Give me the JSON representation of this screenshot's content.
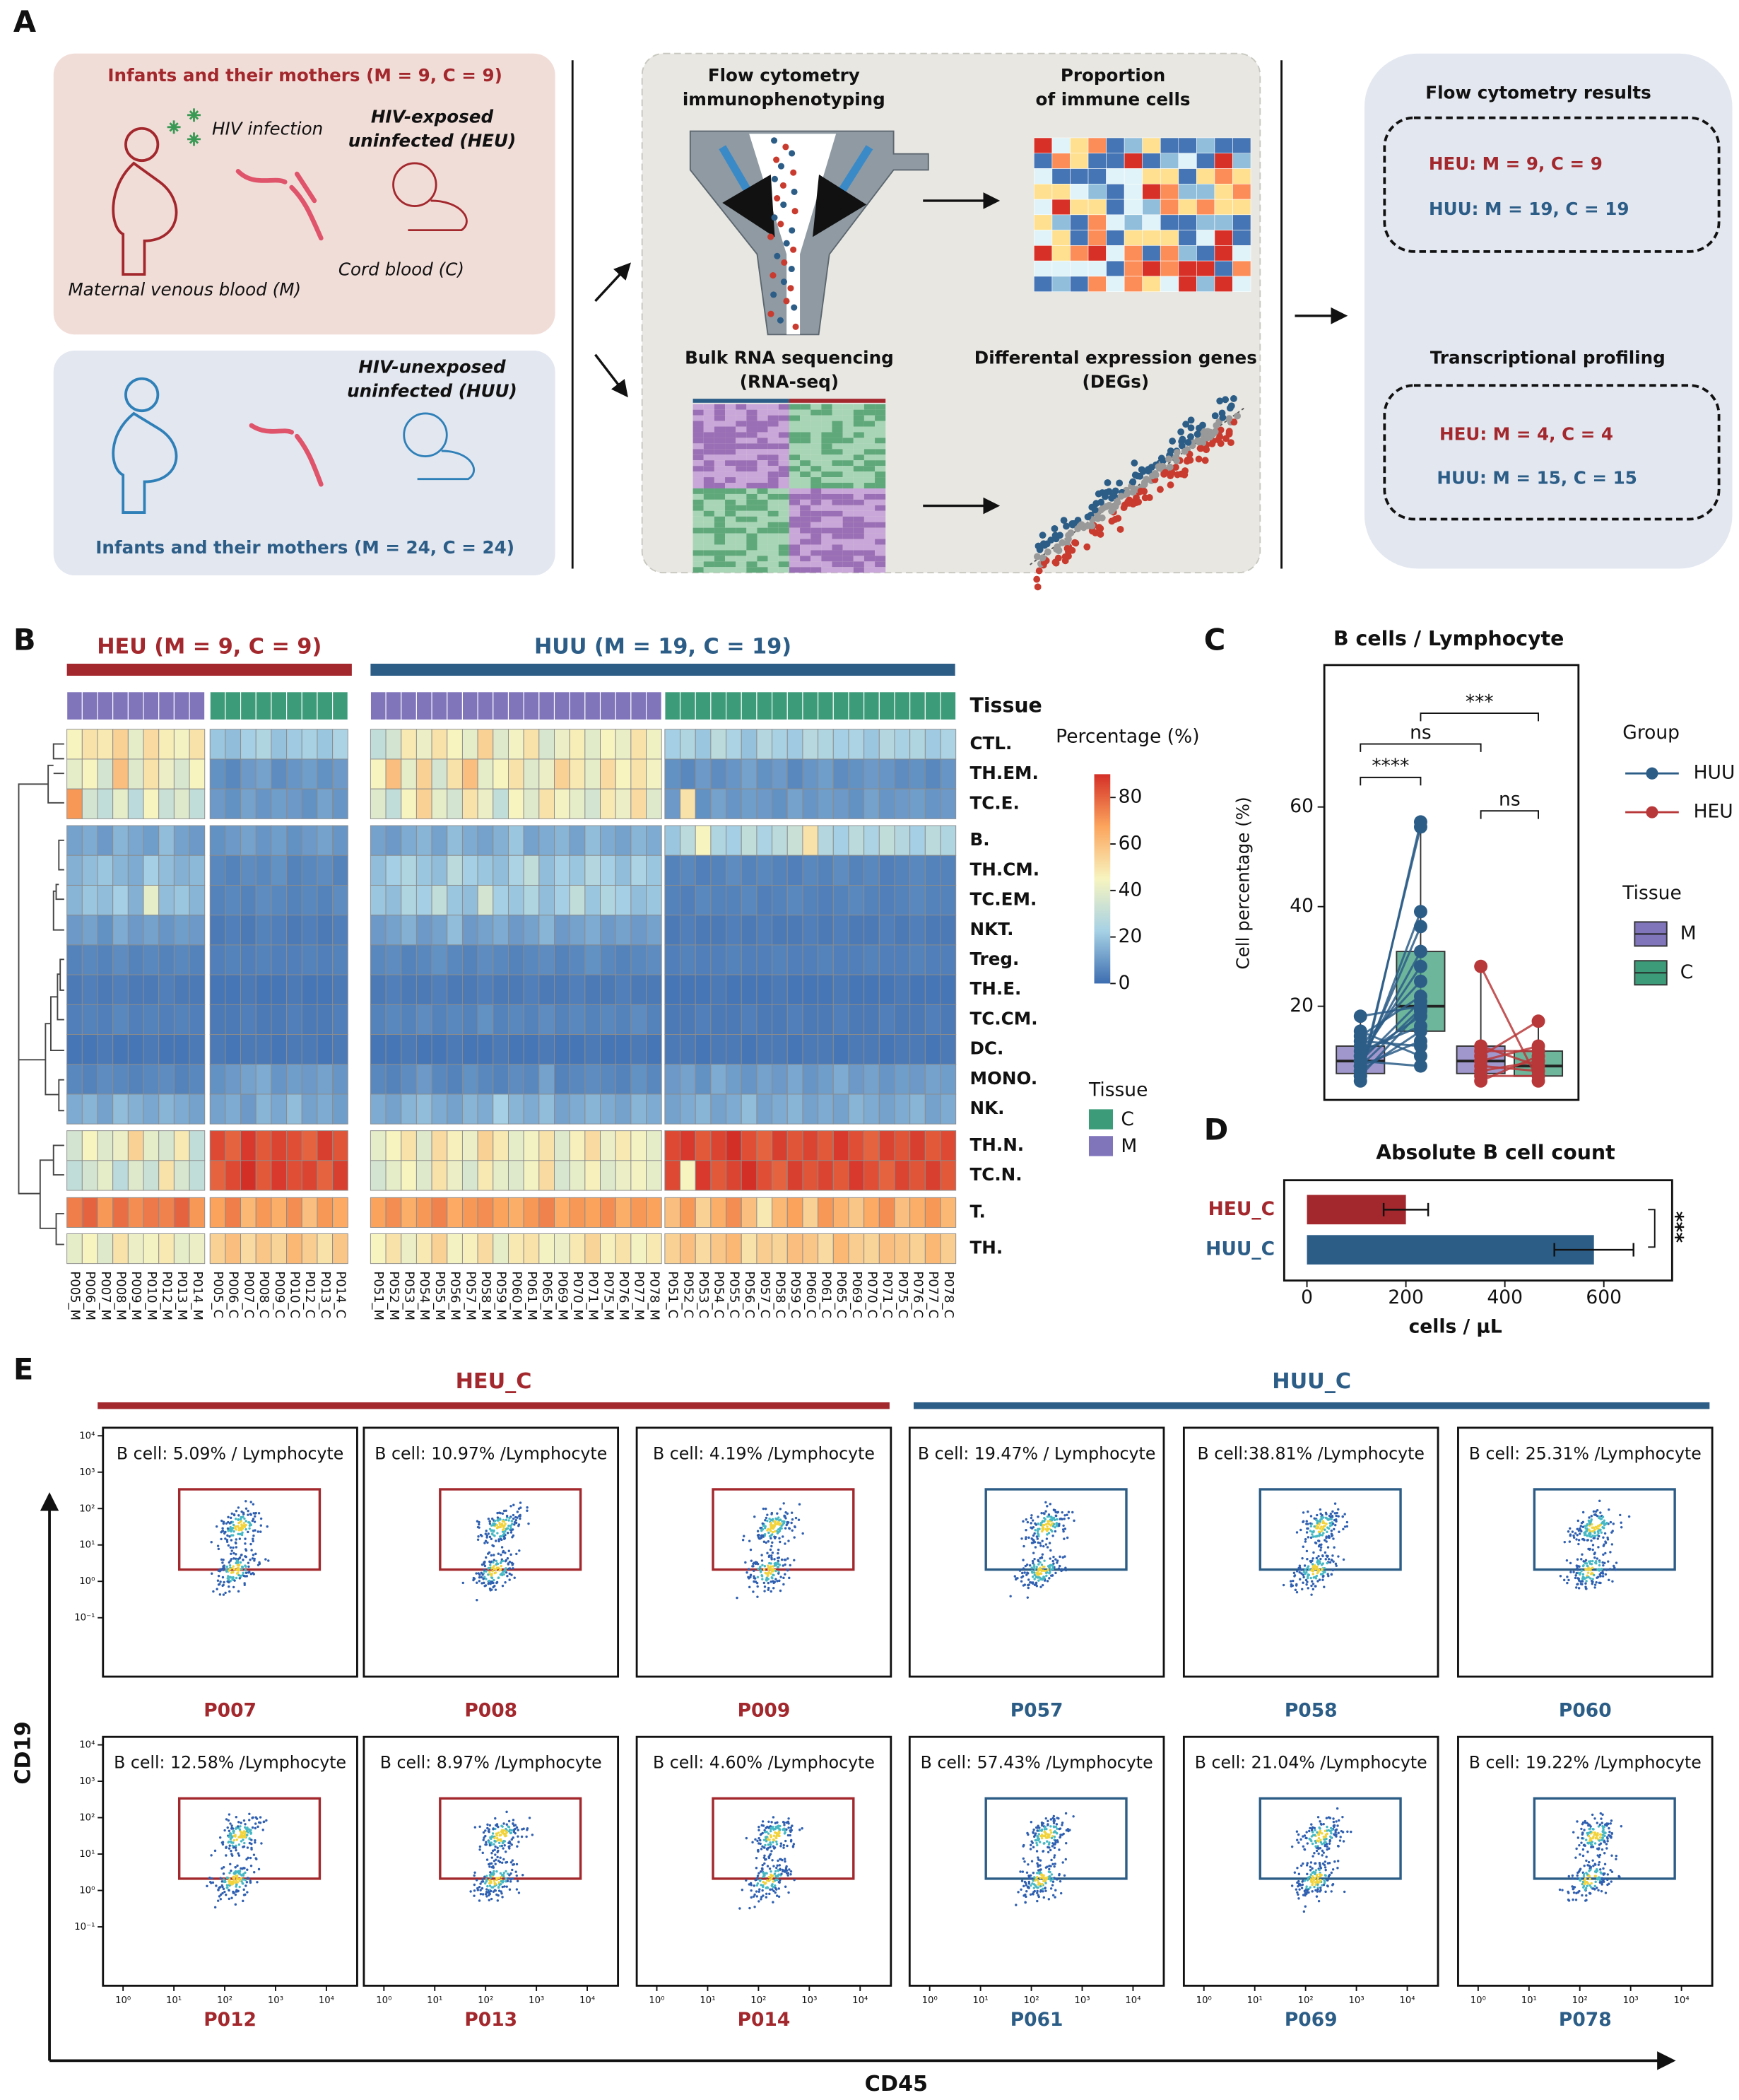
{
  "panel_a": {
    "label": "A",
    "heu_box": {
      "title": "Infants and their mothers (M = 9, C = 9)",
      "infection": "HIV infection",
      "group": [
        "HIV-exposed",
        "uninfected (HEU)"
      ],
      "cord": "Cord blood (C)",
      "maternal": "Maternal venous blood (M)"
    },
    "huu_box": {
      "group": [
        "HIV-unexposed",
        "uninfected (HUU)"
      ],
      "title": "Infants and their mothers (M = 24, C = 24)"
    },
    "methods": {
      "flow": [
        "Flow cytometry",
        "immunophenotyping"
      ],
      "proportion": [
        "Proportion",
        "of immune cells"
      ],
      "rnaseq": [
        "Bulk RNA sequencing",
        "(RNA-seq)"
      ],
      "degs": [
        "Differental expression genes",
        "(DEGs)"
      ]
    },
    "results": {
      "flow_title": "Flow cytometry results",
      "flow_heu": "HEU: M = 9, C = 9",
      "flow_huu": "HUU: M = 19, C = 19",
      "tx_title": "Transcriptional profiling",
      "tx_heu": "HEU: M = 4, C = 4",
      "tx_huu": "HUU: M = 15, C = 15"
    }
  },
  "panel_b": {
    "label": "B",
    "type": "heatmap",
    "groups": [
      {
        "label": "HEU (M = 9, C = 9)",
        "color": "#a3282d"
      },
      {
        "label": "HUU (M = 19, C = 19)",
        "color": "#2c5d87"
      }
    ],
    "tissue_title": "Tissue",
    "tissue_legend": [
      {
        "name": "C",
        "color": "#3c9c7a"
      },
      {
        "name": "M",
        "color": "#8074bb"
      }
    ],
    "colorbar": {
      "title": "Percentage (%)",
      "range": [
        0,
        90
      ],
      "ticks": [
        0,
        20,
        40,
        60,
        80
      ],
      "colors": [
        "#3d6db0",
        "#a6d1e5",
        "#f7f4c0",
        "#fca55d",
        "#d42f27"
      ]
    },
    "rows": [
      "CTL.",
      "TH.EM.",
      "TC.E.",
      "B.",
      "TH.CM.",
      "TC.EM.",
      "NKT.",
      "Treg.",
      "TH.E.",
      "TC.CM.",
      "DC.",
      "MONO.",
      "NK.",
      "TH.N.",
      "TC.N.",
      "T.",
      "TH."
    ],
    "columns": [
      "P005_M",
      "P006_M",
      "P007_M",
      "P008_M",
      "P009_M",
      "P010_M",
      "P012_M",
      "P013_M",
      "P014_M",
      "P005_C",
      "P006_C",
      "P007_C",
      "P008_C",
      "P009_C",
      "P010_C",
      "P012_C",
      "P013_C",
      "P014_C",
      "P051_M",
      "P052_M",
      "P053_M",
      "P054_M",
      "P055_M",
      "P056_M",
      "P057_M",
      "P058_M",
      "P059_M",
      "P060_M",
      "P061_M",
      "P065_M",
      "P069_M",
      "P070_M",
      "P071_M",
      "P075_M",
      "P076_M",
      "P077_M",
      "P078_M",
      "P051_C",
      "P052_C",
      "P053_C",
      "P054_C",
      "P055_C",
      "P056_C",
      "P057_C",
      "P058_C",
      "P059_C",
      "P060_C",
      "P061_C",
      "P065_C",
      "P069_C",
      "P070_C",
      "P071_C",
      "P075_C",
      "P076_C",
      "P077_C",
      "P078_C"
    ],
    "values": [
      [
        45,
        50,
        48,
        55,
        40,
        52,
        47,
        44,
        50,
        20,
        18,
        22,
        25,
        19,
        21,
        23,
        20,
        24,
        30,
        35,
        48,
        42,
        50,
        45,
        40,
        55,
        38,
        44,
        50,
        36,
        42,
        47,
        39,
        45,
        41,
        50,
        43,
        22,
        25,
        20,
        28,
        24,
        19,
        26,
        23,
        21,
        27,
        25,
        22,
        24,
        20,
        26,
        23,
        25,
        21,
        24
      ],
      [
        40,
        45,
        35,
        60,
        38,
        50,
        42,
        36,
        45,
        8,
        6,
        10,
        12,
        7,
        9,
        11,
        8,
        10,
        45,
        60,
        40,
        55,
        35,
        50,
        60,
        40,
        45,
        50,
        38,
        42,
        55,
        48,
        40,
        52,
        45,
        50,
        44,
        8,
        6,
        10,
        7,
        9,
        12,
        8,
        10,
        6,
        9,
        11,
        7,
        8,
        10,
        9,
        7,
        8,
        6,
        9
      ],
      [
        70,
        35,
        30,
        40,
        28,
        45,
        32,
        38,
        30,
        10,
        8,
        12,
        9,
        11,
        10,
        8,
        12,
        9,
        38,
        30,
        45,
        55,
        40,
        35,
        50,
        42,
        30,
        45,
        38,
        50,
        44,
        40,
        35,
        48,
        42,
        52,
        38,
        10,
        50,
        8,
        12,
        9,
        11,
        10,
        8,
        12,
        9,
        11,
        10,
        8,
        12,
        9,
        10,
        11,
        9,
        10
      ],
      [
        12,
        14,
        10,
        16,
        13,
        11,
        18,
        12,
        10,
        8,
        10,
        12,
        9,
        11,
        8,
        10,
        12,
        9,
        12,
        10,
        14,
        16,
        12,
        18,
        14,
        12,
        15,
        20,
        12,
        14,
        16,
        12,
        18,
        14,
        12,
        16,
        14,
        20,
        28,
        45,
        25,
        22,
        30,
        24,
        28,
        32,
        50,
        26,
        22,
        28,
        24,
        30,
        26,
        22,
        28,
        25
      ],
      [
        15,
        18,
        20,
        16,
        14,
        22,
        18,
        15,
        17,
        6,
        5,
        7,
        6,
        8,
        5,
        6,
        7,
        5,
        18,
        22,
        25,
        20,
        18,
        28,
        22,
        20,
        18,
        24,
        30,
        18,
        22,
        20,
        26,
        22,
        18,
        24,
        20,
        5,
        6,
        4,
        5,
        7,
        5,
        6,
        5,
        4,
        6,
        5,
        7,
        5,
        6,
        4,
        5,
        6,
        5,
        5
      ],
      [
        16,
        20,
        18,
        22,
        15,
        40,
        18,
        20,
        16,
        5,
        6,
        5,
        7,
        6,
        5,
        6,
        5,
        7,
        20,
        18,
        25,
        22,
        30,
        20,
        18,
        35,
        22,
        20,
        25,
        18,
        22,
        30,
        20,
        25,
        22,
        18,
        20,
        5,
        4,
        6,
        5,
        5,
        6,
        4,
        5,
        6,
        5,
        4,
        5,
        6,
        5,
        4,
        5,
        6,
        5,
        5
      ],
      [
        10,
        12,
        8,
        14,
        10,
        12,
        9,
        11,
        10,
        3,
        4,
        3,
        5,
        4,
        3,
        4,
        3,
        4,
        10,
        12,
        15,
        10,
        12,
        18,
        10,
        12,
        14,
        10,
        12,
        16,
        10,
        12,
        14,
        10,
        12,
        10,
        12,
        3,
        4,
        3,
        3,
        4,
        3,
        4,
        3,
        3,
        4,
        3,
        4,
        3,
        3,
        4,
        3,
        4,
        3,
        3
      ],
      [
        5,
        6,
        5,
        7,
        5,
        6,
        5,
        6,
        5,
        4,
        5,
        4,
        5,
        4,
        4,
        5,
        4,
        5,
        6,
        7,
        5,
        6,
        8,
        6,
        5,
        7,
        6,
        5,
        6,
        7,
        5,
        6,
        8,
        6,
        5,
        6,
        7,
        4,
        5,
        4,
        4,
        5,
        4,
        4,
        5,
        4,
        4,
        5,
        4,
        4,
        5,
        4,
        4,
        5,
        4,
        4
      ],
      [
        3,
        4,
        3,
        4,
        3,
        3,
        4,
        3,
        3,
        2,
        2,
        3,
        2,
        2,
        3,
        2,
        2,
        3,
        3,
        4,
        3,
        3,
        4,
        3,
        3,
        4,
        3,
        3,
        4,
        3,
        3,
        4,
        3,
        3,
        4,
        3,
        3,
        2,
        2,
        2,
        3,
        2,
        2,
        2,
        3,
        2,
        2,
        2,
        3,
        2,
        2,
        2,
        3,
        2,
        2,
        2
      ],
      [
        4,
        5,
        4,
        6,
        4,
        5,
        4,
        5,
        4,
        3,
        3,
        4,
        3,
        3,
        4,
        3,
        3,
        4,
        5,
        6,
        5,
        7,
        5,
        6,
        5,
        8,
        5,
        6,
        5,
        7,
        5,
        6,
        5,
        6,
        5,
        7,
        5,
        3,
        3,
        4,
        3,
        3,
        4,
        3,
        3,
        4,
        3,
        3,
        4,
        3,
        3,
        4,
        3,
        3,
        4,
        3
      ],
      [
        2,
        2,
        3,
        2,
        2,
        3,
        2,
        2,
        3,
        3,
        2,
        3,
        3,
        2,
        3,
        3,
        2,
        3,
        2,
        2,
        3,
        2,
        2,
        3,
        2,
        2,
        3,
        2,
        2,
        3,
        2,
        2,
        3,
        2,
        2,
        3,
        2,
        3,
        3,
        2,
        3,
        3,
        2,
        3,
        3,
        2,
        3,
        3,
        2,
        3,
        3,
        2,
        3,
        3,
        2,
        3
      ],
      [
        6,
        5,
        7,
        6,
        5,
        6,
        7,
        5,
        6,
        8,
        10,
        12,
        14,
        9,
        11,
        10,
        12,
        9,
        6,
        5,
        7,
        10,
        6,
        5,
        8,
        6,
        5,
        7,
        6,
        12,
        5,
        6,
        7,
        6,
        5,
        8,
        6,
        10,
        12,
        8,
        14,
        11,
        9,
        12,
        10,
        13,
        9,
        11,
        14,
        10,
        12,
        9,
        11,
        10,
        12,
        11
      ],
      [
        14,
        16,
        12,
        18,
        15,
        13,
        16,
        14,
        12,
        12,
        14,
        10,
        16,
        13,
        18,
        12,
        14,
        11,
        14,
        12,
        16,
        18,
        14,
        12,
        16,
        14,
        22,
        16,
        14,
        18,
        12,
        14,
        16,
        14,
        12,
        16,
        14,
        12,
        14,
        16,
        12,
        14,
        18,
        12,
        14,
        16,
        12,
        14,
        12,
        16,
        14,
        12,
        14,
        16,
        12,
        14
      ],
      [
        35,
        45,
        38,
        42,
        55,
        40,
        36,
        48,
        30,
        85,
        80,
        88,
        82,
        86,
        84,
        80,
        87,
        83,
        40,
        45,
        50,
        38,
        52,
        46,
        42,
        55,
        48,
        40,
        44,
        50,
        38,
        46,
        52,
        42,
        48,
        44,
        40,
        85,
        88,
        82,
        86,
        90,
        84,
        80,
        87,
        83,
        86,
        82,
        88,
        84,
        80,
        86,
        83,
        87,
        82,
        85
      ],
      [
        30,
        35,
        40,
        28,
        38,
        32,
        50,
        36,
        30,
        80,
        85,
        90,
        82,
        88,
        84,
        86,
        80,
        87,
        35,
        40,
        45,
        38,
        50,
        42,
        36,
        48,
        40,
        38,
        44,
        52,
        36,
        40,
        46,
        38,
        42,
        44,
        40,
        85,
        45,
        88,
        82,
        86,
        90,
        84,
        80,
        87,
        83,
        86,
        82,
        88,
        84,
        80,
        86,
        83,
        87,
        82
      ],
      [
        75,
        80,
        70,
        78,
        72,
        76,
        74,
        80,
        70,
        68,
        75,
        62,
        70,
        65,
        72,
        60,
        70,
        66,
        68,
        72,
        65,
        70,
        74,
        66,
        70,
        72,
        68,
        65,
        70,
        74,
        66,
        70,
        68,
        72,
        65,
        70,
        68,
        60,
        70,
        55,
        65,
        72,
        60,
        48,
        62,
        68,
        55,
        70,
        64,
        58,
        66,
        72,
        60,
        65,
        70,
        62
      ],
      [
        40,
        45,
        38,
        50,
        42,
        44,
        48,
        40,
        42,
        55,
        60,
        52,
        58,
        54,
        62,
        56,
        50,
        58,
        45,
        50,
        42,
        48,
        55,
        44,
        46,
        52,
        40,
        48,
        50,
        44,
        42,
        48,
        54,
        46,
        50,
        44,
        48,
        55,
        60,
        52,
        58,
        62,
        50,
        56,
        54,
        60,
        58,
        52,
        62,
        56,
        54,
        60,
        58,
        55,
        62,
        56
      ]
    ]
  },
  "panel_c": {
    "label": "C",
    "type": "box",
    "title": "B cells / Lymphocyte",
    "ylabel": "Cell percentage (%)",
    "ylim": [
      1.2,
      88.5
    ],
    "yticks": [
      20,
      40,
      60
    ],
    "group_title": "Group",
    "tissue_title": "Tissue",
    "tissues": [
      {
        "name": "M",
        "color": "#8074bb"
      },
      {
        "name": "C",
        "color": "#3c9c7a"
      }
    ],
    "groups": [
      {
        "name": "HUU",
        "color": "#2c5d87",
        "boxes": [
          {
            "min": 4,
            "q1": 6.5,
            "median": 9,
            "q3": 12,
            "max": 18
          },
          {
            "min": 8,
            "q1": 15,
            "median": 20,
            "q3": 31,
            "max": 57
          }
        ],
        "M": [
          5,
          6,
          7,
          8,
          9,
          10,
          12,
          14,
          18,
          6,
          8,
          9,
          10,
          11,
          7,
          8,
          13,
          15,
          9
        ],
        "C": [
          57,
          56,
          39,
          36,
          31,
          28,
          25,
          22,
          20,
          19,
          19.5,
          21,
          18,
          16,
          15,
          13,
          12,
          10,
          8
        ]
      },
      {
        "name": "HEU",
        "color": "#b8383a",
        "boxes": [
          {
            "min": 5,
            "q1": 6.5,
            "median": 9,
            "q3": 12,
            "max": 28
          },
          {
            "min": 5,
            "q1": 6,
            "median": 8,
            "q3": 11,
            "max": 17
          }
        ],
        "M": [
          28,
          12,
          10,
          9,
          8,
          7,
          6,
          5,
          11
        ],
        "C": [
          5,
          8,
          17,
          12,
          7,
          9,
          6,
          10,
          11
        ]
      }
    ],
    "comparisons": [
      "****",
      "ns",
      "***",
      "ns"
    ]
  },
  "panel_d": {
    "label": "D",
    "type": "bar",
    "title": "Absolute B cell count",
    "xlabel": "cells / μL",
    "categories": [
      "HEU_C",
      "HUU_C"
    ],
    "values": [
      200,
      580
    ],
    "errors": [
      45,
      80
    ],
    "colors": [
      "#a3282d",
      "#2c5d87"
    ],
    "xlim": [
      -46,
      738
    ],
    "xticks": [
      0,
      200,
      400,
      600
    ],
    "annotation": "***"
  },
  "panel_e": {
    "label": "E",
    "xlabel": "CD45",
    "ylabel": "CD19",
    "log_ticks": [
      {
        "value": -1,
        "label": "10⁻¹"
      },
      {
        "value": 0,
        "label": "10⁰"
      },
      {
        "value": 1,
        "label": "10¹"
      },
      {
        "value": 2,
        "label": "10²"
      },
      {
        "value": 3,
        "label": "10³"
      },
      {
        "value": 4,
        "label": "10⁴"
      }
    ],
    "groups": [
      {
        "label": "HEU_C",
        "color": "#a3282d",
        "plots": [
          {
            "sample": "P007",
            "text": "B cell: 5.09% / Lymphocyte"
          },
          {
            "sample": "P008",
            "text": "B cell: 10.97% /Lymphocyte"
          },
          {
            "sample": "P009",
            "text": "B cell: 4.19% /Lymphocyte"
          },
          {
            "sample": "P012",
            "text": "B cell: 12.58% /Lymphocyte"
          },
          {
            "sample": "P013",
            "text": "B cell: 8.97% /Lymphocyte"
          },
          {
            "sample": "P014",
            "text": "B cell: 4.60% /Lymphocyte"
          }
        ]
      },
      {
        "label": "HUU_C",
        "color": "#2c5d87",
        "plots": [
          {
            "sample": "P057",
            "text": "B cell: 19.47% / Lymphocyte"
          },
          {
            "sample": "P058",
            "text": "B cell:38.81% /Lymphocyte"
          },
          {
            "sample": "P060",
            "text": "B cell: 25.31% /Lymphocyte"
          },
          {
            "sample": "P061",
            "text": "B cell: 57.43% /Lymphocyte"
          },
          {
            "sample": "P069",
            "text": "B cell: 21.04% /Lymphocyte"
          },
          {
            "sample": "P078",
            "text": "B cell: 19.22% /Lymphocyte"
          }
        ]
      }
    ]
  }
}
